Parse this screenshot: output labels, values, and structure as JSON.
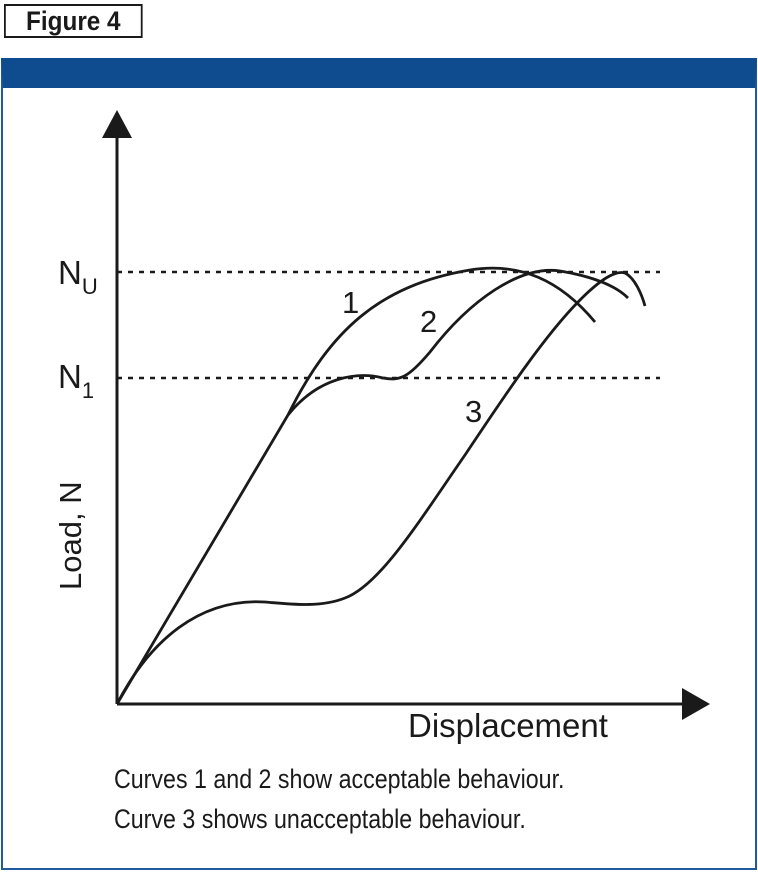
{
  "figure_label": "Figure 4",
  "colors": {
    "frame_border": "#1f5b9a",
    "frame_header": "#0f4c8f",
    "ink": "#1a1a1a"
  },
  "axes": {
    "y_label": "Load, N",
    "x_label": "Displacement"
  },
  "levels": {
    "nu": {
      "base": "N",
      "sub": "U"
    },
    "n1": {
      "base": "N",
      "sub": "1"
    }
  },
  "curve_labels": {
    "c1": "1",
    "c2": "2",
    "c3": "3"
  },
  "caption": {
    "line1": "Curves 1 and 2 show acceptable behaviour.",
    "line2": "Curve 3 shows unacceptable behaviour."
  }
}
